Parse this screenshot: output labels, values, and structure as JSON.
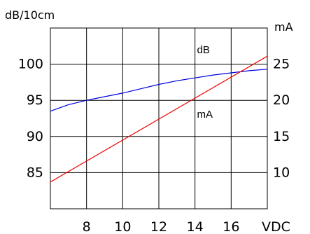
{
  "chart_data": {
    "type": "line",
    "x_unit": "VDC",
    "y_left_unit": "dB/10cm",
    "y_right_unit": "mA",
    "x_ticks": [
      "8",
      "10",
      "12",
      "14",
      "16"
    ],
    "y_left_ticks": [
      "100",
      "95",
      "90",
      "85"
    ],
    "y_right_ticks": [
      "25",
      "20",
      "15",
      "10"
    ],
    "xlim": [
      6,
      18
    ],
    "y_left_lim": [
      80,
      105
    ],
    "y_right_lim": [
      5,
      30
    ],
    "grid": true,
    "series": [
      {
        "name": "dB",
        "axis": "left",
        "color": "#0000dd",
        "x": [
          6,
          7,
          8,
          9,
          10,
          11,
          12,
          13,
          14,
          15,
          16,
          17,
          18
        ],
        "y": [
          93.5,
          94.4,
          95.0,
          95.5,
          96.0,
          96.6,
          97.2,
          97.7,
          98.1,
          98.5,
          98.8,
          99.1,
          99.3
        ]
      },
      {
        "name": "mA",
        "axis": "right",
        "color": "#ee0000",
        "x": [
          6,
          18
        ],
        "y": [
          8.7,
          26.1
        ]
      }
    ]
  }
}
